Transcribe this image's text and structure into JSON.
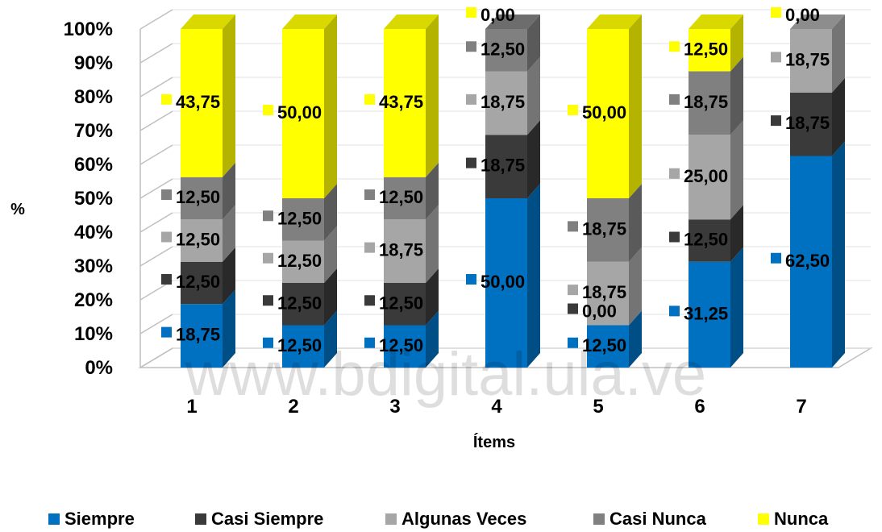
{
  "chart_data": {
    "type": "bar",
    "stacked": true,
    "three_d": true,
    "title": "",
    "xlabel": "Ítems",
    "ylabel": "%",
    "ylim": [
      0,
      100
    ],
    "yticks": [
      "0%",
      "10%",
      "20%",
      "30%",
      "40%",
      "50%",
      "60%",
      "70%",
      "80%",
      "90%",
      "100%"
    ],
    "categories": [
      "1",
      "2",
      "3",
      "4",
      "5",
      "6",
      "7"
    ],
    "legend_position": "bottom",
    "series": [
      {
        "name": "Siempre",
        "color": "#0070C0",
        "values": [
          18.75,
          12.5,
          12.5,
          50.0,
          12.5,
          31.25,
          62.5
        ],
        "labels": [
          "18,75",
          "12,50",
          "12,50",
          "50,00",
          "12,50",
          "31,25",
          "62,50"
        ]
      },
      {
        "name": "Casi Siempre",
        "color": "#3A3A3A",
        "values": [
          12.5,
          12.5,
          12.5,
          18.75,
          0.0,
          12.5,
          18.75
        ],
        "labels": [
          "12,50",
          "12,50",
          "12,50",
          "18,75",
          "0,00",
          "12,50",
          "18,75"
        ]
      },
      {
        "name": "Algunas Veces",
        "color": "#A6A6A6",
        "values": [
          12.5,
          12.5,
          18.75,
          18.75,
          18.75,
          25.0,
          18.75
        ],
        "labels": [
          "12,50",
          "12,50",
          "18,75",
          "18,75",
          "18,75",
          "25,00",
          "18,75"
        ]
      },
      {
        "name": "Casi Nunca",
        "color": "#808080",
        "values": [
          12.5,
          12.5,
          12.5,
          12.5,
          18.75,
          18.75,
          0
        ],
        "labels": [
          "12,50",
          "12,50",
          "12,50",
          "12,50",
          "18,75",
          "18,75",
          ""
        ]
      },
      {
        "name": "Nunca",
        "color": "#FFFF00",
        "values": [
          43.75,
          50.0,
          43.75,
          0.0,
          50.0,
          12.5,
          0.0
        ],
        "labels": [
          "43,75",
          "50,00",
          "43,75",
          "0,00",
          "50,00",
          "12,50",
          "0,00"
        ]
      }
    ]
  },
  "watermark": "www.bdigital.ula.ve"
}
